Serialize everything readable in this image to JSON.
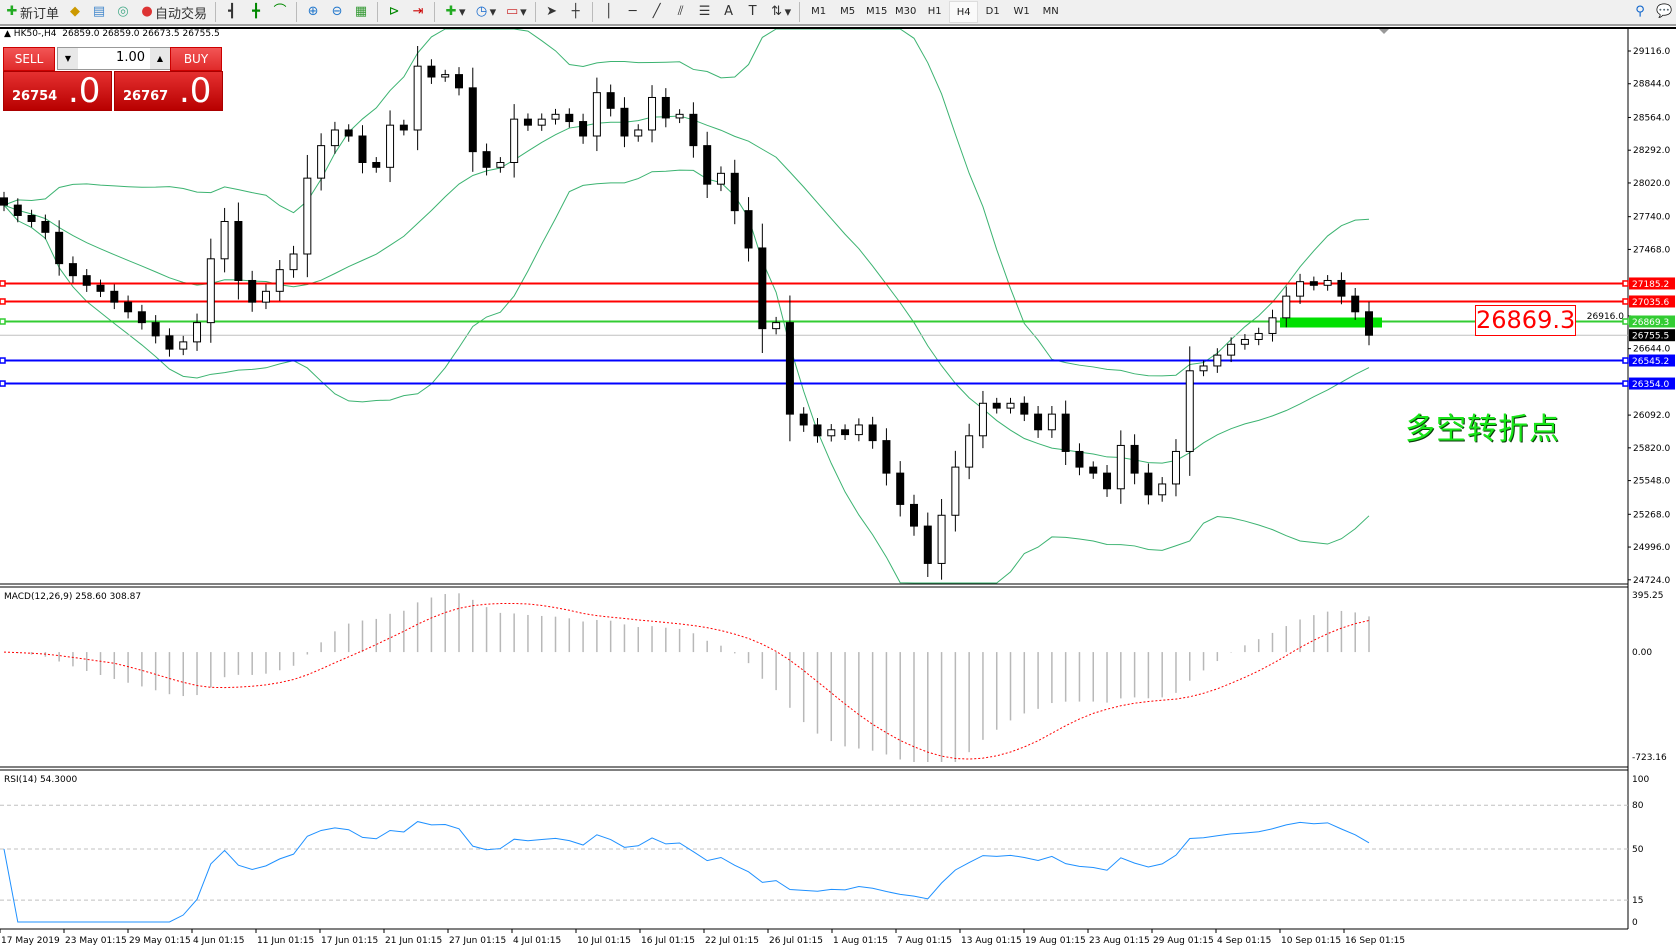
{
  "toolbar": {
    "new_order": "新订单",
    "auto_trading": "自动交易",
    "timeframes": [
      "M1",
      "M5",
      "M15",
      "M30",
      "H1",
      "H4",
      "D1",
      "W1",
      "MN"
    ],
    "active_timeframe": "H4"
  },
  "chart": {
    "symbol_info": "HK50-,H4  26859.0 26859.0 26673.5 26755.5"
  },
  "trade_panel": {
    "sell_label": "SELL",
    "buy_label": "BUY",
    "lot": "1.00",
    "sell_main": "26754",
    "sell_frac": ".0",
    "buy_main": "26767",
    "buy_frac": ".0"
  },
  "price_axis": {
    "labels": [
      "29116.0",
      "28844.0",
      "28564.0",
      "28292.0",
      "28020.0",
      "27740.0",
      "27468.0",
      "26916.0",
      "26644.0",
      "26092.0",
      "25820.0",
      "25548.0",
      "25268.0",
      "24996.0",
      "24724.0"
    ]
  },
  "levels": [
    {
      "price": 27185.2,
      "label": "27185.2",
      "color": "#ff0000"
    },
    {
      "price": 27035.6,
      "label": "27035.6",
      "color": "#ff0000"
    },
    {
      "price": 26869.3,
      "label": "26869.3",
      "color": "#33cc33"
    },
    {
      "price": 26545.2,
      "label": "26545.2",
      "color": "#0000ff"
    },
    {
      "price": 26354.0,
      "label": "26354.0",
      "color": "#0000ff"
    }
  ],
  "current_price": {
    "price": 26755.5,
    "label": "26755.5"
  },
  "annotation": {
    "price_box": "26869.3",
    "text": "多空转折点",
    "zone_color": "#00e000"
  },
  "macd": {
    "label": "MACD(12,26,9) 258.60 308.87",
    "axis": [
      "395.25",
      "0.00",
      "-723.16"
    ],
    "max": 395.25,
    "min": -723.16
  },
  "rsi": {
    "label": "RSI(14) 54.3000",
    "axis": [
      "100",
      "80",
      "50",
      "15",
      "0"
    ],
    "levels": [
      80,
      50,
      15
    ]
  },
  "time_axis": [
    "17 May 2019",
    "23 May 01:15",
    "29 May 01:15",
    "4 Jun 01:15",
    "11 Jun 01:15",
    "17 Jun 01:15",
    "21 Jun 01:15",
    "27 Jun 01:15",
    "4 Jul 01:15",
    "10 Jul 01:15",
    "16 Jul 01:15",
    "22 Jul 01:15",
    "26 Jul 01:15",
    "1 Aug 01:15",
    "7 Aug 01:15",
    "13 Aug 01:15",
    "19 Aug 01:15",
    "23 Aug 01:15",
    "29 Aug 01:15",
    "4 Sep 01:15",
    "10 Sep 01:15",
    "16 Sep 01:15"
  ],
  "chart_data": {
    "type": "candlestick",
    "symbol": "HK50-",
    "timeframe": "H4",
    "ylim": [
      24724.0,
      29116.0
    ],
    "indicators": [
      "Bollinger Bands",
      "MACD(12,26,9)",
      "RSI(14)"
    ],
    "close": [
      27836,
      27750,
      27700,
      27610,
      27350,
      27250,
      27170,
      27120,
      27030,
      26950,
      26860,
      26750,
      26640,
      26700,
      26860,
      27390,
      27700,
      27210,
      27030,
      27120,
      27300,
      27430,
      28060,
      28330,
      28460,
      28410,
      28190,
      28150,
      28500,
      28460,
      28990,
      28900,
      28920,
      28810,
      28280,
      28150,
      28190,
      28550,
      28500,
      28550,
      28590,
      28530,
      28410,
      28770,
      28640,
      28410,
      28460,
      28730,
      28560,
      28590,
      28330,
      28010,
      28100,
      27790,
      27480,
      26810,
      26860,
      26100,
      26010,
      25920,
      25970,
      25930,
      26010,
      25880,
      25610,
      25350,
      25170,
      24860,
      25260,
      25660,
      25920,
      26190,
      26150,
      26190,
      26100,
      25970,
      26100,
      25790,
      25660,
      25610,
      25480,
      25840,
      25610,
      25430,
      25520,
      25790,
      26460,
      26500,
      26590,
      26680,
      26720,
      26770,
      26900,
      27080,
      27200,
      27170,
      27210,
      27080,
      26950,
      26755.5
    ]
  }
}
